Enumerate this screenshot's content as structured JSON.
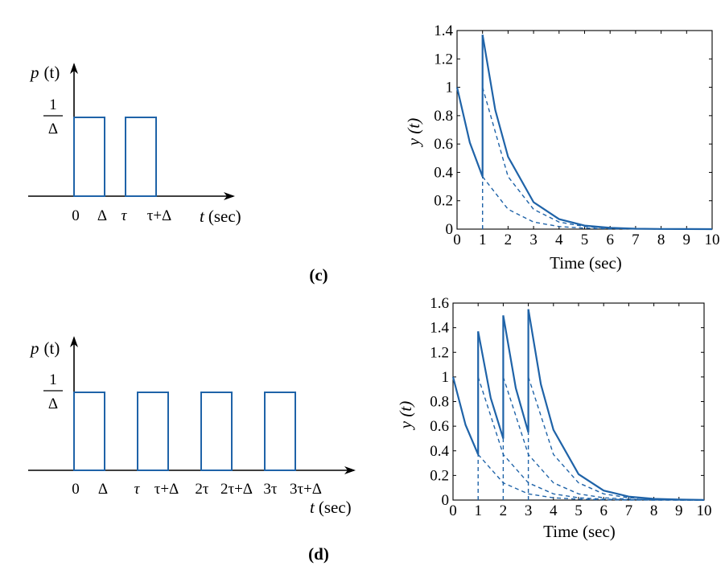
{
  "colors": {
    "signal": "#1f63a8",
    "axis": "#000000"
  },
  "panels": [
    {
      "label": "(c)",
      "pulse_diagram": {
        "ylabel": "p (t)",
        "ylabel_var": "p",
        "ylabel_arg": "(t)",
        "height_num": "1",
        "height_den": "Δ",
        "xlabel_var": "t",
        "xlabel_unit": "(sec)",
        "pulse_count": 2,
        "tick_labels": [
          "0",
          "Δ",
          "τ",
          "τ+Δ"
        ]
      },
      "chart_data": {
        "type": "line",
        "xlabel": "Time (sec)",
        "ylabel": "y (t)",
        "xlim": [
          0,
          10
        ],
        "ylim": [
          0,
          1.4
        ],
        "xticks": [
          0,
          1,
          2,
          3,
          4,
          5,
          6,
          7,
          8,
          9,
          10
        ],
        "yticks": [
          0,
          0.2,
          0.4,
          0.6,
          0.8,
          1,
          1.2,
          1.4
        ],
        "ytick_labels": [
          "0",
          "0.2",
          "0.4",
          "0.6",
          "0.8",
          "1",
          "1.2",
          "1.4"
        ],
        "response": {
          "style": "solid",
          "pieces": [
            {
              "x": [
                0,
                0.5,
                1.0
              ],
              "y": [
                1.0,
                0.61,
                0.37
              ]
            },
            {
              "x": [
                1.0,
                1.5,
                2,
                3,
                4,
                5,
                6,
                7,
                8,
                9,
                10
              ],
              "y": [
                1.37,
                0.84,
                0.51,
                0.19,
                0.07,
                0.025,
                0.009,
                0.003,
                0.0012,
                0.0004,
                0.0002
              ]
            }
          ]
        },
        "components": {
          "style": "dashed",
          "pieces": [
            {
              "x": [
                1,
                2,
                3,
                4,
                5,
                6,
                7,
                8,
                9,
                10
              ],
              "y": [
                0.37,
                0.14,
                0.05,
                0.018,
                0.007,
                0.0025,
                0.0009,
                0.0003,
                0.0001,
                5e-05
              ]
            },
            {
              "x": [
                1,
                2,
                3,
                4,
                5,
                6,
                7,
                8,
                9,
                10
              ],
              "y": [
                1.0,
                0.37,
                0.14,
                0.05,
                0.018,
                0.007,
                0.0025,
                0.0009,
                0.0003,
                0.0001
              ]
            }
          ],
          "vlines": [
            {
              "x": 1,
              "y_top": 0.37
            }
          ]
        }
      }
    },
    {
      "label": "(d)",
      "pulse_diagram": {
        "ylabel": "p (t)",
        "ylabel_var": "p",
        "ylabel_arg": "(t)",
        "height_num": "1",
        "height_den": "Δ",
        "xlabel_var": "t",
        "xlabel_unit": "(sec)",
        "pulse_count": 4,
        "tick_labels": [
          "0",
          "Δ",
          "τ",
          "τ+Δ",
          "2τ",
          "2τ+Δ",
          "3τ",
          "3τ+Δ"
        ]
      },
      "chart_data": {
        "type": "line",
        "xlabel": "Time (sec)",
        "ylabel": "y (t)",
        "xlim": [
          0,
          10
        ],
        "ylim": [
          0,
          1.6
        ],
        "xticks": [
          0,
          1,
          2,
          3,
          4,
          5,
          6,
          7,
          8,
          9,
          10
        ],
        "yticks": [
          0,
          0.2,
          0.4,
          0.6,
          0.8,
          1,
          1.2,
          1.4,
          1.6
        ],
        "ytick_labels": [
          "0",
          "0.2",
          "0.4",
          "0.6",
          "0.8",
          "1",
          "1.2",
          "1.4",
          "1.6"
        ],
        "response": {
          "style": "solid",
          "pieces": [
            {
              "x": [
                0,
                0.5,
                1.0
              ],
              "y": [
                1.0,
                0.61,
                0.37
              ]
            },
            {
              "x": [
                1.0,
                1.5,
                2.0
              ],
              "y": [
                1.37,
                0.83,
                0.5
              ]
            },
            {
              "x": [
                2.0,
                2.5,
                3.0
              ],
              "y": [
                1.5,
                0.91,
                0.55
              ]
            },
            {
              "x": [
                3.0,
                3.5,
                4,
                5,
                6,
                7,
                8,
                9,
                10
              ],
              "y": [
                1.55,
                0.94,
                0.57,
                0.21,
                0.077,
                0.028,
                0.01,
                0.004,
                0.0015
              ]
            }
          ]
        },
        "components": {
          "style": "dashed",
          "pieces": [
            {
              "x": [
                1,
                2,
                3,
                4,
                5,
                6,
                7,
                8,
                9,
                10
              ],
              "y": [
                0.37,
                0.14,
                0.05,
                0.018,
                0.007,
                0.0025,
                0.0009,
                0.0003,
                0.0001,
                5e-05
              ]
            },
            {
              "x": [
                1,
                2,
                3,
                4,
                5,
                6,
                7,
                8,
                9,
                10
              ],
              "y": [
                1.0,
                0.37,
                0.14,
                0.05,
                0.018,
                0.007,
                0.0025,
                0.0009,
                0.0003,
                0.0001
              ]
            },
            {
              "x": [
                2,
                3,
                4,
                5,
                6,
                7,
                8,
                9,
                10
              ],
              "y": [
                1.0,
                0.37,
                0.14,
                0.05,
                0.018,
                0.007,
                0.0025,
                0.0009,
                0.0003
              ]
            },
            {
              "x": [
                3,
                4,
                5,
                6,
                7,
                8,
                9,
                10
              ],
              "y": [
                1.0,
                0.37,
                0.14,
                0.05,
                0.018,
                0.007,
                0.0025,
                0.0009
              ]
            }
          ],
          "vlines": [
            {
              "x": 1,
              "y_top": 0.37
            },
            {
              "x": 2,
              "y_top": 0.5
            },
            {
              "x": 3,
              "y_top": 0.55
            }
          ]
        }
      }
    }
  ]
}
